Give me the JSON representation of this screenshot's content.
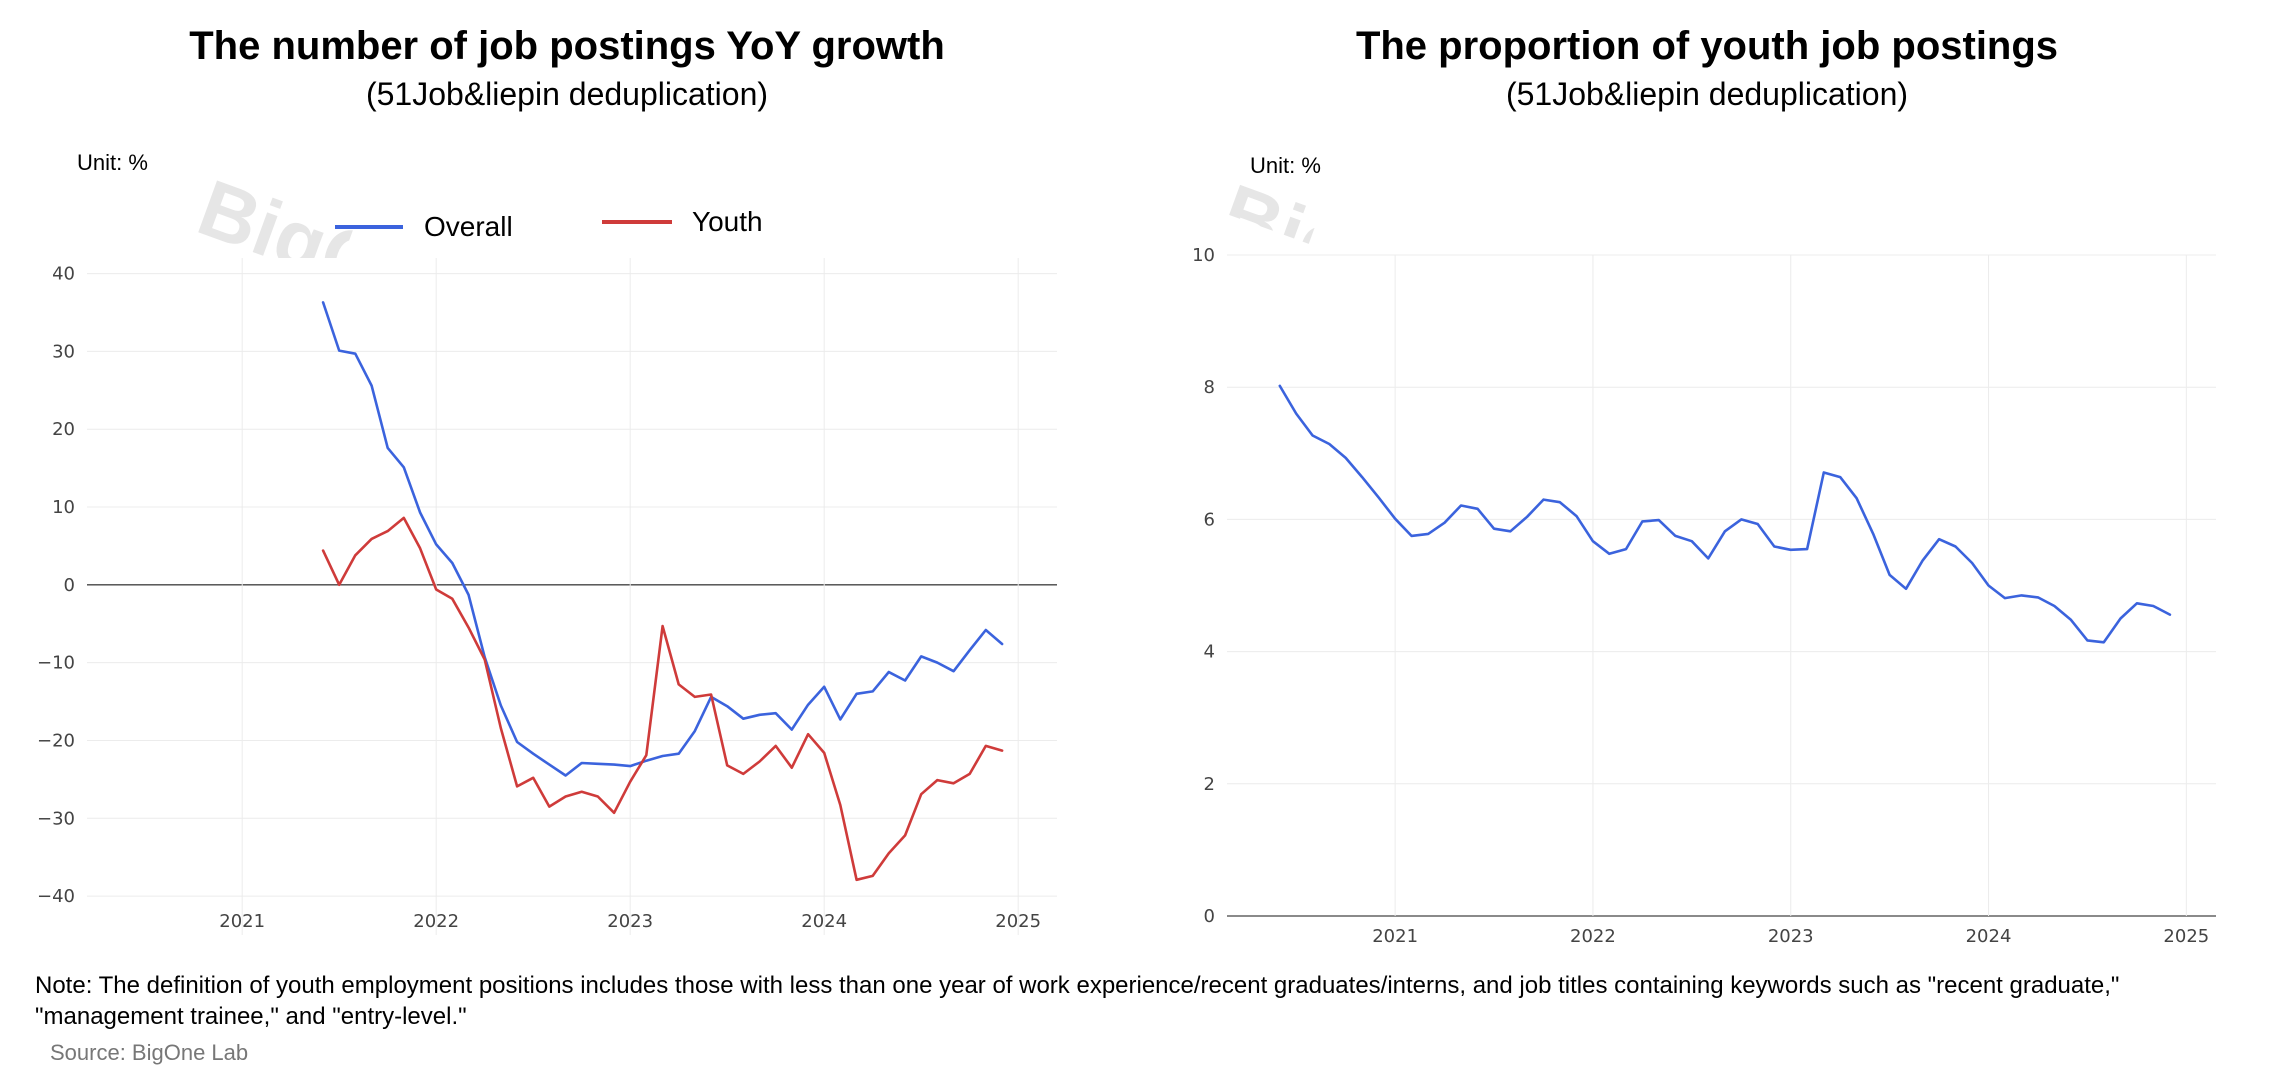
{
  "chart_data": [
    {
      "type": "line",
      "title": "The number of job postings YoY growth",
      "subtitle": "(51Job&liepin deduplication)",
      "unit_label": "Unit: %",
      "watermark": "BigOne",
      "xlim": [
        2020.2,
        2025.2
      ],
      "ylim": [
        -45,
        42
      ],
      "x_ticks": [
        2021,
        2022,
        2023,
        2024,
        2025
      ],
      "y_ticks": [
        40,
        30,
        20,
        10,
        0,
        -10,
        -20,
        -30,
        -40
      ],
      "y_tick_labels": [
        "40",
        "30",
        "20",
        "10",
        "0",
        "−10",
        "−20",
        "−30",
        "−40"
      ],
      "grid": true,
      "legend_position": "top",
      "series": [
        {
          "name": "Overall",
          "color": "#3b63dd",
          "x": [
            2021.417,
            2021.5,
            2021.583,
            2021.667,
            2021.75,
            2021.833,
            2021.917,
            2022.0,
            2022.083,
            2022.167,
            2022.25,
            2022.333,
            2022.417,
            2022.5,
            2022.583,
            2022.667,
            2022.75,
            2022.833,
            2022.917,
            2023.0,
            2023.083,
            2023.167,
            2023.25,
            2023.333,
            2023.417,
            2023.5,
            2023.583,
            2023.667,
            2023.75,
            2023.833,
            2023.917,
            2024.0,
            2024.083,
            2024.167,
            2024.25,
            2024.333,
            2024.417,
            2024.5,
            2024.583,
            2024.667,
            2024.75,
            2024.833,
            2024.917
          ],
          "y": [
            36.3,
            30.1,
            29.7,
            25.6,
            17.6,
            15.1,
            9.3,
            5.2,
            2.8,
            -1.3,
            -9.3,
            -15.5,
            -20.2,
            -21.7,
            -23.1,
            -24.5,
            -22.9,
            -23.0,
            -23.1,
            -23.3,
            -22.6,
            -22.0,
            -21.7,
            -18.8,
            -14.4,
            -15.6,
            -17.2,
            -16.7,
            -16.5,
            -18.6,
            -15.4,
            -13.1,
            -17.3,
            -14.0,
            -13.7,
            -11.2,
            -12.3,
            -9.2,
            -10.0,
            -11.1,
            -8.4,
            -5.8,
            -7.6
          ]
        },
        {
          "name": "Youth",
          "color": "#cf3b3a",
          "x": [
            2021.417,
            2021.5,
            2021.583,
            2021.667,
            2021.75,
            2021.833,
            2021.917,
            2022.0,
            2022.083,
            2022.167,
            2022.25,
            2022.333,
            2022.417,
            2022.5,
            2022.583,
            2022.667,
            2022.75,
            2022.833,
            2022.917,
            2023.0,
            2023.083,
            2023.167,
            2023.25,
            2023.333,
            2023.417,
            2023.5,
            2023.583,
            2023.667,
            2023.75,
            2023.833,
            2023.917,
            2024.0,
            2024.083,
            2024.167,
            2024.25,
            2024.333,
            2024.417,
            2024.5,
            2024.583,
            2024.667,
            2024.75,
            2024.833,
            2024.917
          ],
          "y": [
            4.4,
            0.0,
            3.8,
            5.9,
            6.9,
            8.6,
            4.7,
            -0.6,
            -1.8,
            -5.5,
            -9.6,
            -18.4,
            -25.9,
            -24.8,
            -28.5,
            -27.2,
            -26.6,
            -27.2,
            -29.3,
            -25.3,
            -21.9,
            -5.3,
            -12.8,
            -14.4,
            -14.1,
            -23.2,
            -24.3,
            -22.7,
            -20.7,
            -23.5,
            -19.2,
            -21.6,
            -28.3,
            -37.9,
            -37.4,
            -34.5,
            -32.2,
            -26.9,
            -25.1,
            -25.5,
            -24.3,
            -20.7,
            -21.3
          ]
        }
      ]
    },
    {
      "type": "line",
      "title": "The proportion of youth job postings",
      "subtitle": "(51Job&liepin deduplication)",
      "unit_label": "Unit: %",
      "watermark": "BigOne",
      "xlim": [
        2020.15,
        2025.15
      ],
      "ylim": [
        0,
        10
      ],
      "x_ticks": [
        2021,
        2022,
        2023,
        2024,
        2025
      ],
      "y_ticks": [
        10,
        8,
        6,
        4,
        2,
        0
      ],
      "y_tick_labels": [
        "10",
        "8",
        "6",
        "4",
        "2",
        "0"
      ],
      "grid": true,
      "series": [
        {
          "name": "",
          "color": "#3b63dd",
          "x": [
            2020.417,
            2020.5,
            2020.583,
            2020.667,
            2020.75,
            2020.833,
            2020.917,
            2021.0,
            2021.083,
            2021.167,
            2021.25,
            2021.333,
            2021.417,
            2021.5,
            2021.583,
            2021.667,
            2021.75,
            2021.833,
            2021.917,
            2022.0,
            2022.083,
            2022.167,
            2022.25,
            2022.333,
            2022.417,
            2022.5,
            2022.583,
            2022.667,
            2022.75,
            2022.833,
            2022.917,
            2023.0,
            2023.083,
            2023.167,
            2023.25,
            2023.333,
            2023.417,
            2023.5,
            2023.583,
            2023.667,
            2023.75,
            2023.833,
            2023.917,
            2024.0,
            2024.083,
            2024.167,
            2024.25,
            2024.333,
            2024.417,
            2024.5,
            2024.583,
            2024.667,
            2024.75,
            2024.833,
            2024.917
          ],
          "y": [
            8.02,
            7.6,
            7.27,
            7.14,
            6.93,
            6.64,
            6.33,
            6.01,
            5.75,
            5.78,
            5.95,
            6.21,
            6.16,
            5.86,
            5.82,
            6.04,
            6.3,
            6.26,
            6.05,
            5.67,
            5.48,
            5.55,
            5.97,
            5.99,
            5.75,
            5.67,
            5.41,
            5.82,
            6.0,
            5.93,
            5.59,
            5.54,
            5.55,
            6.71,
            6.64,
            6.32,
            5.78,
            5.16,
            4.95,
            5.38,
            5.7,
            5.59,
            5.34,
            5.0,
            4.81,
            4.85,
            4.82,
            4.69,
            4.48,
            4.17,
            4.14,
            4.5,
            4.73,
            4.69,
            4.56
          ]
        }
      ]
    }
  ],
  "note": "Note: The definition of youth employment positions includes those with less than one year of work experience/recent graduates/interns, and job titles containing keywords such as \"recent graduate,\" \"management trainee,\" and \"entry-level.\"",
  "source": "Source: BigOne Lab"
}
